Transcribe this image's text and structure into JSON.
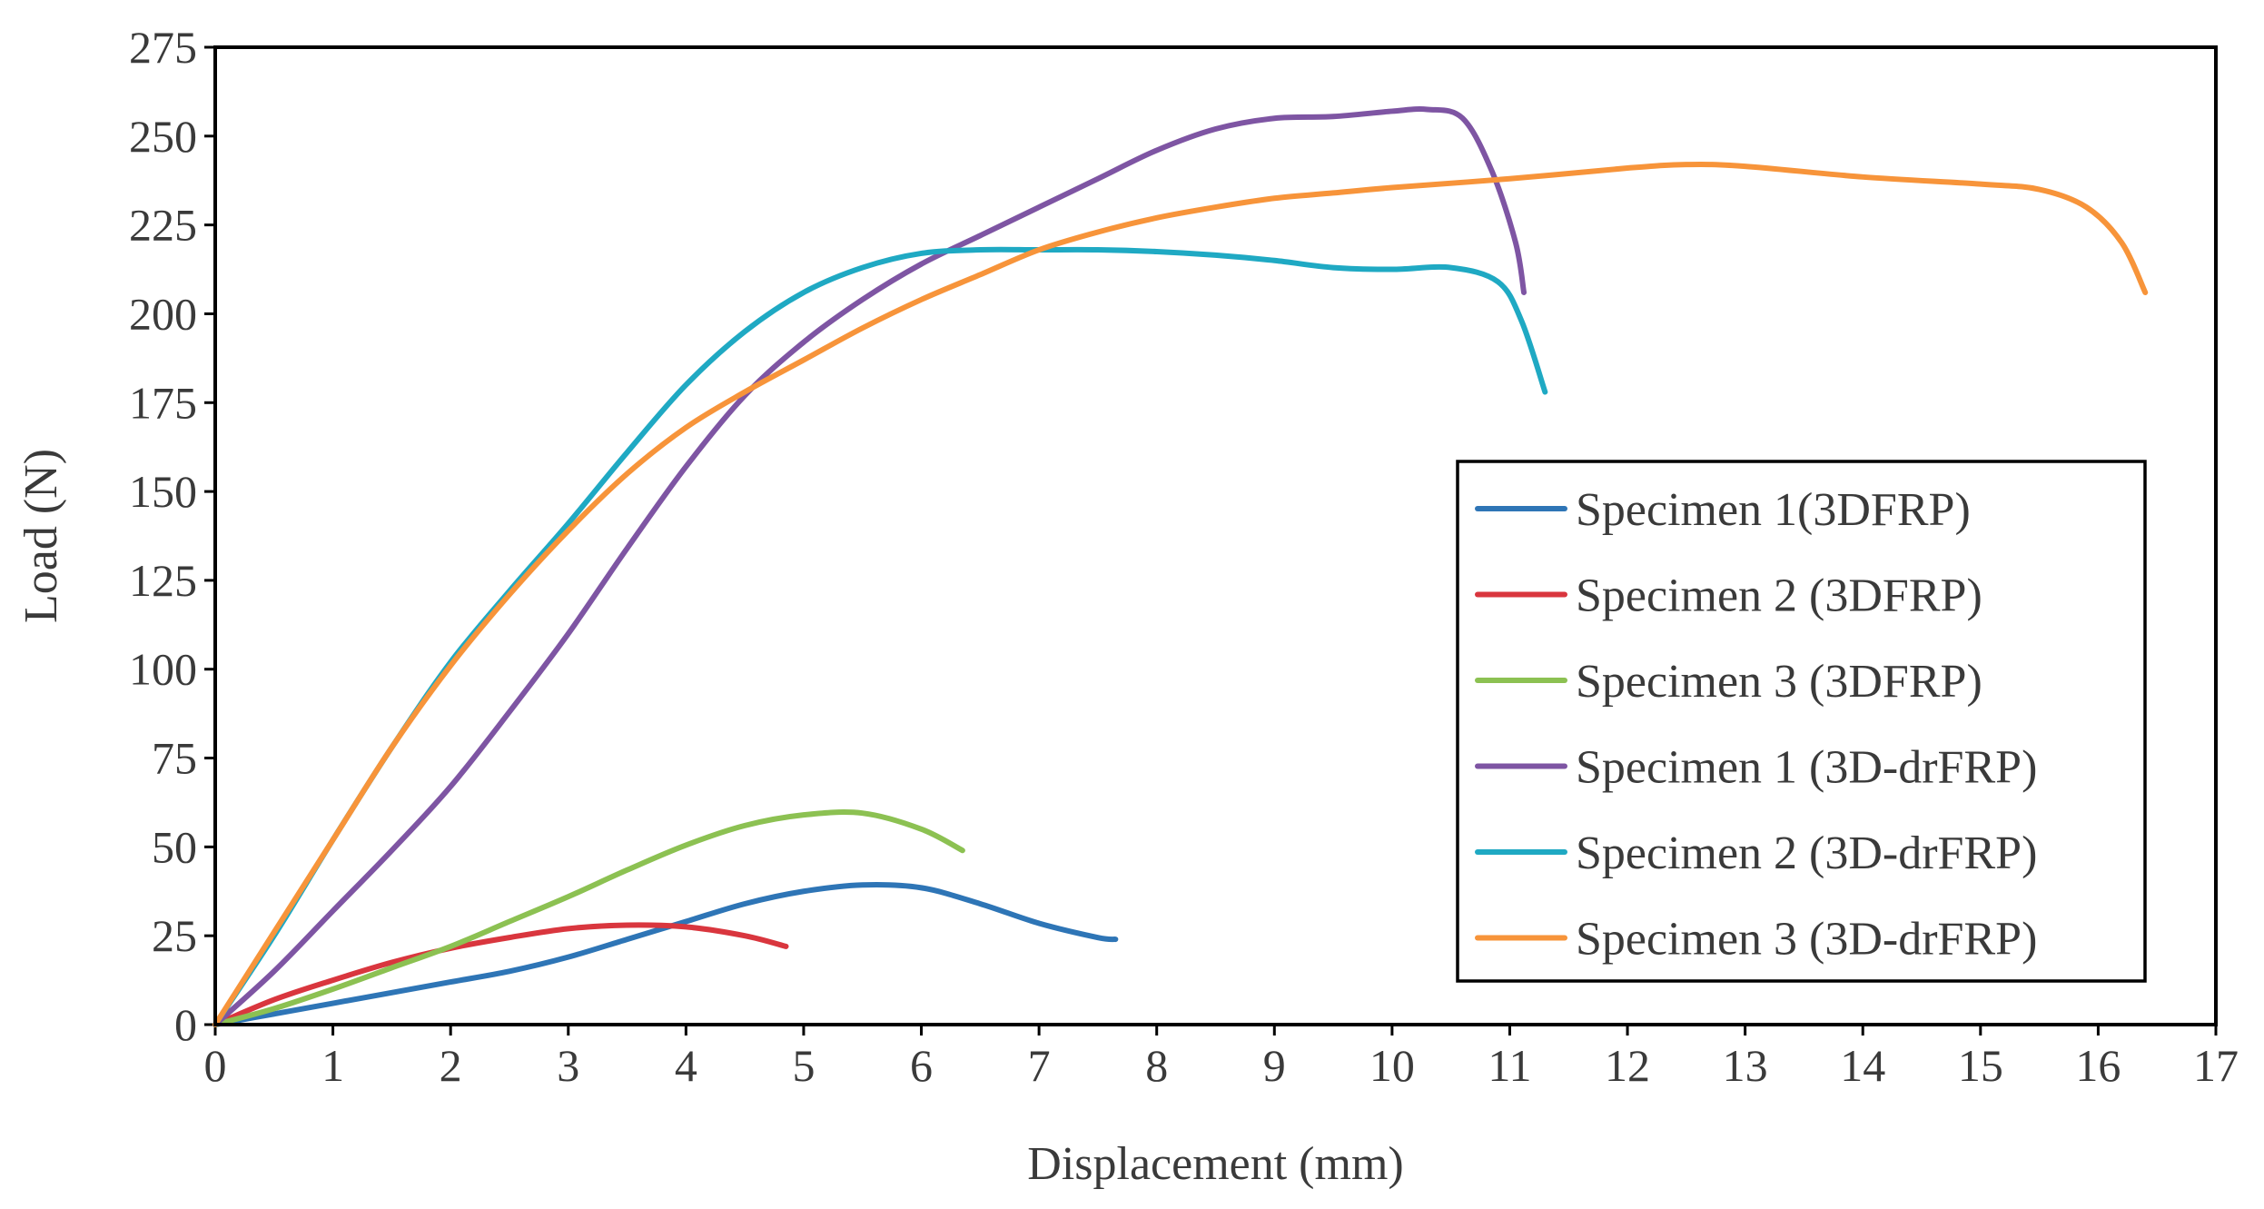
{
  "chart_data": {
    "type": "line",
    "title": "",
    "xlabel": "Displacement (mm)",
    "ylabel": "Load (N)",
    "xlim": [
      0,
      17
    ],
    "ylim": [
      0,
      275
    ],
    "xticks": [
      "0",
      "1",
      "2",
      "3",
      "4",
      "5",
      "6",
      "7",
      "8",
      "9",
      "10",
      "11",
      "12",
      "13",
      "14",
      "15",
      "16",
      "17"
    ],
    "yticks": [
      "0",
      "25",
      "50",
      "75",
      "100",
      "125",
      "150",
      "175",
      "200",
      "225",
      "250",
      "275"
    ],
    "grid": false,
    "legend_position": "right",
    "series": [
      {
        "name": "Specimen 1(3DFRP)",
        "color": "#2e75b6",
        "points": [
          [
            0,
            0
          ],
          [
            0.5,
            3
          ],
          [
            1,
            6
          ],
          [
            1.5,
            9
          ],
          [
            2,
            12
          ],
          [
            2.5,
            15
          ],
          [
            3,
            19
          ],
          [
            3.5,
            24
          ],
          [
            4,
            29
          ],
          [
            4.5,
            34
          ],
          [
            5,
            37.5
          ],
          [
            5.5,
            39.3
          ],
          [
            6,
            38.5
          ],
          [
            6.5,
            34
          ],
          [
            7,
            28.5
          ],
          [
            7.5,
            24.5
          ],
          [
            7.65,
            24
          ]
        ]
      },
      {
        "name": "Specimen 2 (3DFRP)",
        "color": "#d9363e",
        "points": [
          [
            0,
            0
          ],
          [
            0.5,
            7
          ],
          [
            1,
            12.5
          ],
          [
            1.5,
            17.5
          ],
          [
            2,
            21.5
          ],
          [
            2.5,
            24.5
          ],
          [
            3,
            27
          ],
          [
            3.5,
            28
          ],
          [
            4,
            27.5
          ],
          [
            4.5,
            25
          ],
          [
            4.85,
            22
          ]
        ]
      },
      {
        "name": "Specimen 3 (3DFRP)",
        "color": "#8cc152",
        "points": [
          [
            0,
            0
          ],
          [
            0.5,
            4.5
          ],
          [
            1,
            10
          ],
          [
            1.5,
            16
          ],
          [
            2,
            22
          ],
          [
            2.5,
            29
          ],
          [
            3,
            36
          ],
          [
            3.5,
            43.5
          ],
          [
            4,
            50.5
          ],
          [
            4.5,
            56
          ],
          [
            5,
            59
          ],
          [
            5.5,
            59.5
          ],
          [
            6,
            55
          ],
          [
            6.35,
            49
          ]
        ]
      },
      {
        "name": "Specimen 1 (3D-drFRP)",
        "color": "#7e55a3",
        "points": [
          [
            0,
            0
          ],
          [
            0.5,
            15
          ],
          [
            1,
            32
          ],
          [
            1.5,
            49
          ],
          [
            2,
            67
          ],
          [
            2.5,
            88
          ],
          [
            3,
            110
          ],
          [
            3.5,
            134
          ],
          [
            4,
            157
          ],
          [
            4.5,
            177
          ],
          [
            5,
            192
          ],
          [
            5.5,
            204
          ],
          [
            6,
            214
          ],
          [
            6.5,
            222
          ],
          [
            7,
            230
          ],
          [
            7.5,
            238
          ],
          [
            8,
            246
          ],
          [
            8.5,
            252
          ],
          [
            9,
            255
          ],
          [
            9.5,
            255.5
          ],
          [
            10,
            257
          ],
          [
            10.3,
            257.5
          ],
          [
            10.6,
            255
          ],
          [
            10.85,
            240
          ],
          [
            11.05,
            220
          ],
          [
            11.12,
            206
          ]
        ]
      },
      {
        "name": "Specimen 2 (3D-drFRP)",
        "color": "#1fa9c3",
        "points": [
          [
            0,
            0
          ],
          [
            0.5,
            25
          ],
          [
            1,
            52
          ],
          [
            1.5,
            78
          ],
          [
            2,
            102
          ],
          [
            2.5,
            122
          ],
          [
            3,
            141
          ],
          [
            3.5,
            161
          ],
          [
            4,
            180
          ],
          [
            4.5,
            195
          ],
          [
            5,
            206
          ],
          [
            5.5,
            213
          ],
          [
            6,
            217
          ],
          [
            6.5,
            218
          ],
          [
            7,
            218
          ],
          [
            7.5,
            218
          ],
          [
            8,
            217.5
          ],
          [
            8.5,
            216.5
          ],
          [
            9,
            215
          ],
          [
            9.5,
            213
          ],
          [
            10,
            212.5
          ],
          [
            10.5,
            213
          ],
          [
            10.9,
            209
          ],
          [
            11.1,
            198
          ],
          [
            11.3,
            178
          ]
        ]
      },
      {
        "name": "Specimen 3 (3D-drFRP)",
        "color": "#f7943a",
        "points": [
          [
            0,
            0
          ],
          [
            0.5,
            26
          ],
          [
            1,
            52
          ],
          [
            1.5,
            78
          ],
          [
            2,
            101
          ],
          [
            2.5,
            121
          ],
          [
            3,
            139
          ],
          [
            3.5,
            155
          ],
          [
            4,
            168
          ],
          [
            4.5,
            178
          ],
          [
            5,
            187
          ],
          [
            5.5,
            196
          ],
          [
            6,
            204
          ],
          [
            6.5,
            211
          ],
          [
            7,
            218
          ],
          [
            7.5,
            223
          ],
          [
            8,
            227
          ],
          [
            8.5,
            230
          ],
          [
            9,
            232.5
          ],
          [
            9.5,
            234
          ],
          [
            10,
            235.5
          ],
          [
            11,
            238
          ],
          [
            12,
            241
          ],
          [
            12.5,
            242
          ],
          [
            13,
            241.5
          ],
          [
            14,
            238.5
          ],
          [
            15,
            236.5
          ],
          [
            15.5,
            235
          ],
          [
            15.9,
            230
          ],
          [
            16.2,
            220
          ],
          [
            16.4,
            206
          ]
        ]
      }
    ]
  }
}
